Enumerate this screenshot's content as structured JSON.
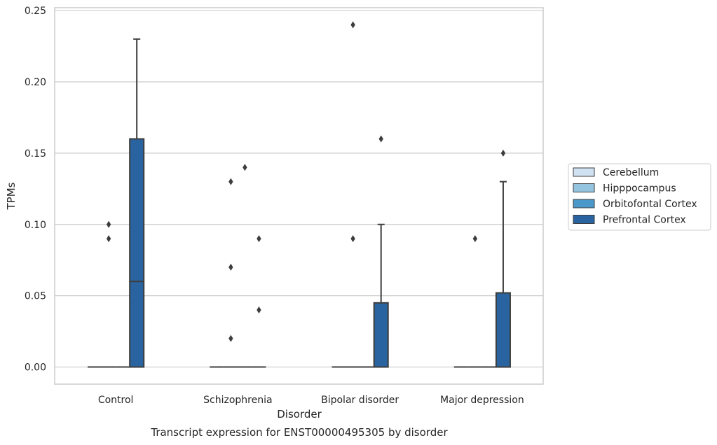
{
  "chart_data": {
    "type": "box",
    "xlabel": "Disorder",
    "ylabel": "TPMs",
    "caption": "Transcript expression for ENST00000495305 by disorder",
    "categories": [
      "Control",
      "Schizophrenia",
      "Bipolar disorder",
      "Major depression"
    ],
    "ylim": [
      -0.012,
      0.252
    ],
    "yticks": [
      0.0,
      0.05,
      0.1,
      0.15,
      0.2,
      0.25
    ],
    "ytick_labels": [
      "0.00",
      "0.05",
      "0.10",
      "0.15",
      "0.20",
      "0.25"
    ],
    "grid": "horizontal",
    "legend_position": "right",
    "series": [
      {
        "name": "Cerebellum",
        "color": "#d0e1f2",
        "boxes": [
          {
            "q1": 0,
            "median": 0,
            "q3": 0,
            "whislo": 0,
            "whishi": 0,
            "fliers": []
          },
          {
            "q1": 0,
            "median": 0,
            "q3": 0,
            "whislo": 0,
            "whishi": 0,
            "fliers": []
          },
          {
            "q1": 0,
            "median": 0,
            "q3": 0,
            "whislo": 0,
            "whishi": 0,
            "fliers": []
          },
          {
            "q1": 0,
            "median": 0,
            "q3": 0,
            "whislo": 0,
            "whishi": 0,
            "fliers": []
          }
        ]
      },
      {
        "name": "Hipppocampus",
        "color": "#94c4df",
        "boxes": [
          {
            "q1": 0,
            "median": 0,
            "q3": 0,
            "whislo": 0,
            "whishi": 0,
            "fliers": [
              0.09,
              0.1
            ]
          },
          {
            "q1": 0,
            "median": 0,
            "q3": 0,
            "whislo": 0,
            "whishi": 0,
            "fliers": [
              0.02,
              0.07,
              0.13
            ]
          },
          {
            "q1": 0,
            "median": 0,
            "q3": 0,
            "whislo": 0,
            "whishi": 0,
            "fliers": [
              0.09,
              0.24
            ]
          },
          {
            "q1": 0,
            "median": 0,
            "q3": 0,
            "whislo": 0,
            "whishi": 0,
            "fliers": [
              0.09
            ]
          }
        ]
      },
      {
        "name": "Orbitofontal Cortex",
        "color": "#4a98c9",
        "boxes": [
          {
            "q1": 0,
            "median": 0,
            "q3": 0,
            "whislo": 0,
            "whishi": 0,
            "fliers": []
          },
          {
            "q1": 0,
            "median": 0,
            "q3": 0,
            "whislo": 0,
            "whishi": 0,
            "fliers": [
              0.14
            ]
          },
          {
            "q1": 0,
            "median": 0,
            "q3": 0,
            "whislo": 0,
            "whishi": 0,
            "fliers": []
          },
          {
            "q1": 0,
            "median": 0,
            "q3": 0,
            "whislo": 0,
            "whishi": 0,
            "fliers": []
          }
        ]
      },
      {
        "name": "Prefrontal Cortex",
        "color": "#2a64a0",
        "boxes": [
          {
            "q1": 0,
            "median": 0.06,
            "q3": 0.16,
            "whislo": 0,
            "whishi": 0.23,
            "fliers": []
          },
          {
            "q1": 0,
            "median": 0,
            "q3": 0,
            "whislo": 0,
            "whishi": 0,
            "fliers": [
              0.04,
              0.09
            ]
          },
          {
            "q1": 0,
            "median": 0,
            "q3": 0.045,
            "whislo": 0,
            "whishi": 0.1,
            "fliers": [
              0.16
            ]
          },
          {
            "q1": 0,
            "median": 0,
            "q3": 0.052,
            "whislo": 0,
            "whishi": 0.13,
            "fliers": [
              0.15
            ]
          }
        ]
      }
    ]
  }
}
